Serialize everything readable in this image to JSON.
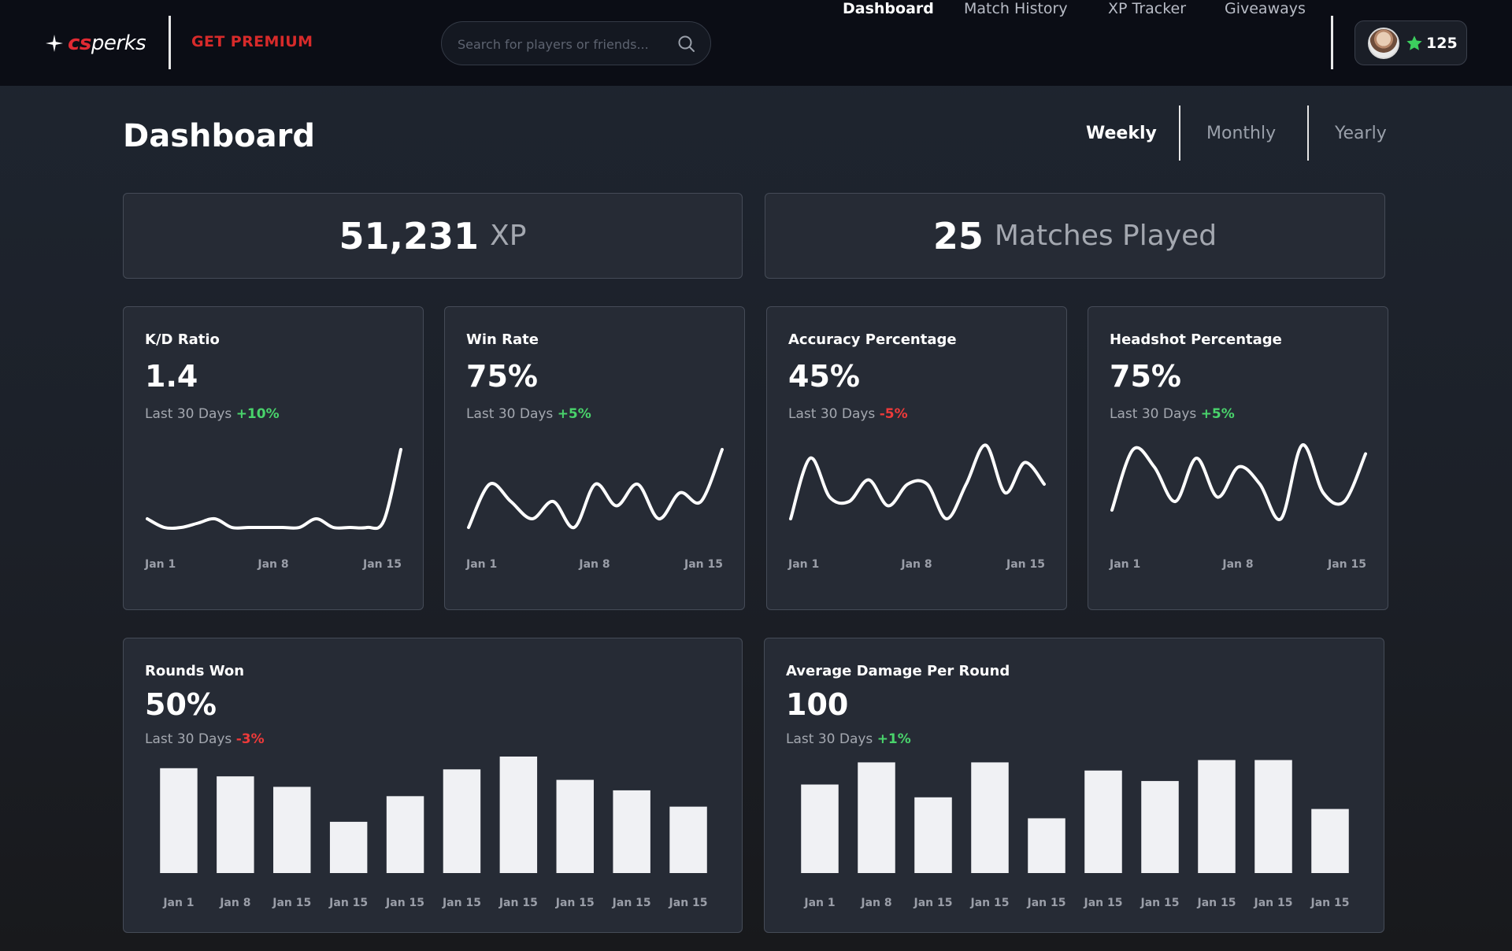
{
  "topbar": {
    "logo_cs": "cs",
    "logo_perks": "perks",
    "premium_label": "GET PREMIUM",
    "search_placeholder": "Search for players or friends...",
    "nav": [
      {
        "label": "Dashboard",
        "active": true
      },
      {
        "label": "Match History",
        "active": false
      },
      {
        "label": "XP Tracker",
        "active": false
      },
      {
        "label": "Giveaways",
        "active": false
      }
    ],
    "points": "125"
  },
  "header": {
    "title": "Dashboard",
    "periods": [
      {
        "label": "Weekly",
        "active": true
      },
      {
        "label": "Monthly",
        "active": false
      },
      {
        "label": "Yearly",
        "active": false
      }
    ]
  },
  "summary": {
    "xp": {
      "value": "51,231",
      "unit": "XP"
    },
    "matches": {
      "value": "25",
      "unit": "Matches Played"
    }
  },
  "colors": {
    "accent_red": "#d72a2a",
    "positive": "#49d36b",
    "negative": "#ee3a3a",
    "star": "#3ccf5e",
    "card_bg": "#262b35"
  },
  "metrics": [
    {
      "title": "K/D Ratio",
      "value": "1.4",
      "period": "Last 30 Days",
      "change": "+10%",
      "trend": "pos",
      "x_labels": [
        "Jan 1",
        "Jan 8",
        "Jan 15"
      ]
    },
    {
      "title": "Win Rate",
      "value": "75%",
      "period": "Last 30 Days",
      "change": "+5%",
      "trend": "pos",
      "x_labels": [
        "Jan 1",
        "Jan 8",
        "Jan 15"
      ]
    },
    {
      "title": "Accuracy Percentage",
      "value": "45%",
      "period": "Last 30 Days",
      "change": "-5%",
      "trend": "neg",
      "x_labels": [
        "Jan 1",
        "Jan 8",
        "Jan 15"
      ]
    },
    {
      "title": "Headshot Percentage",
      "value": "75%",
      "period": "Last 30 Days",
      "change": "+5%",
      "trend": "pos",
      "x_labels": [
        "Jan 1",
        "Jan 8",
        "Jan 15"
      ]
    }
  ],
  "bar_cards": [
    {
      "title": "Rounds Won",
      "value": "50%",
      "period": "Last 30 Days",
      "change": "-3%",
      "trend": "neg"
    },
    {
      "title": "Average Damage Per Round",
      "value": "100",
      "period": "Last 30 Days",
      "change": "+1%",
      "trend": "pos"
    }
  ],
  "chart_data": [
    {
      "type": "line",
      "title": "K/D Ratio",
      "x_labels": [
        "Jan 1",
        "Jan 8",
        "Jan 15"
      ],
      "values": [
        0.1,
        0.0,
        0.0,
        0.05,
        0.1,
        0.0,
        0.0,
        0.0,
        0.0,
        0.0,
        0.1,
        0.0,
        0.0,
        0.0,
        0.08,
        0.9
      ]
    },
    {
      "type": "line",
      "title": "Win Rate",
      "x_labels": [
        "Jan 1",
        "Jan 8",
        "Jan 15"
      ],
      "values": [
        0.0,
        0.5,
        0.3,
        0.1,
        0.3,
        0.0,
        0.5,
        0.25,
        0.5,
        0.1,
        0.4,
        0.3,
        0.9
      ]
    },
    {
      "type": "line",
      "title": "Accuracy Percentage",
      "x_labels": [
        "Jan 1",
        "Jan 8",
        "Jan 15"
      ],
      "values": [
        0.1,
        0.8,
        0.35,
        0.3,
        0.55,
        0.25,
        0.5,
        0.5,
        0.1,
        0.5,
        0.95,
        0.4,
        0.75,
        0.5
      ]
    },
    {
      "type": "line",
      "title": "Headshot Percentage",
      "x_labels": [
        "Jan 1",
        "Jan 8",
        "Jan 15"
      ],
      "values": [
        0.2,
        0.9,
        0.7,
        0.3,
        0.8,
        0.35,
        0.7,
        0.5,
        0.1,
        0.95,
        0.4,
        0.3,
        0.85
      ]
    },
    {
      "type": "bar",
      "title": "Rounds Won",
      "categories": [
        "Jan 1",
        "Jan 8",
        "Jan 15",
        "Jan 15",
        "Jan 15",
        "Jan 15",
        "Jan 15",
        "Jan 15",
        "Jan 15",
        "Jan 15"
      ],
      "values": [
        90,
        83,
        74,
        44,
        66,
        89,
        100,
        80,
        71,
        57
      ],
      "ylim": [
        0,
        100
      ]
    },
    {
      "type": "bar",
      "title": "Average Damage Per Round",
      "categories": [
        "Jan 1",
        "Jan 8",
        "Jan 15",
        "Jan 15",
        "Jan 15",
        "Jan 15",
        "Jan 15",
        "Jan 15",
        "Jan 15",
        "Jan 15"
      ],
      "values": [
        76,
        95,
        65,
        95,
        47,
        88,
        79,
        97,
        97,
        55
      ],
      "ylim": [
        0,
        100
      ]
    }
  ]
}
